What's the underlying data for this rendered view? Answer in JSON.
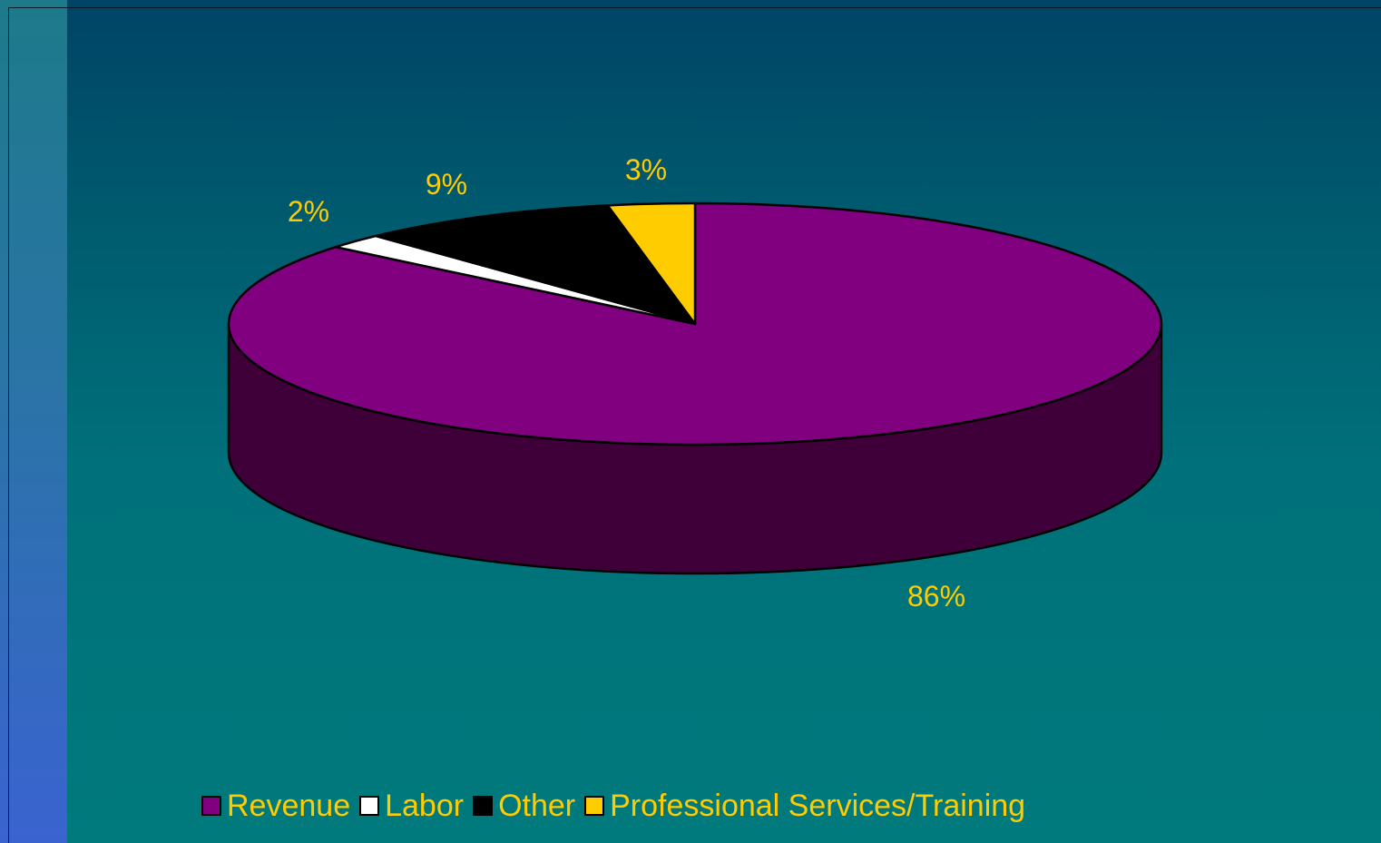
{
  "chart_data": {
    "type": "pie",
    "style": "3d",
    "slices": [
      {
        "name": "Revenue",
        "value": 86,
        "label": "86%",
        "color": "#800080",
        "side_color": "#3f003a"
      },
      {
        "name": "Labor",
        "value": 2,
        "label": "2%",
        "color": "#ffffff",
        "side_color": "#cccccc"
      },
      {
        "name": "Other",
        "value": 9,
        "label": "9%",
        "color": "#000000",
        "side_color": "#000000"
      },
      {
        "name": "Professional Services/Training",
        "value": 3,
        "label": "3%",
        "color": "#ffcc00",
        "side_color": "#aa8800"
      }
    ],
    "label_color": "#ffcc00",
    "legend_position": "bottom"
  }
}
